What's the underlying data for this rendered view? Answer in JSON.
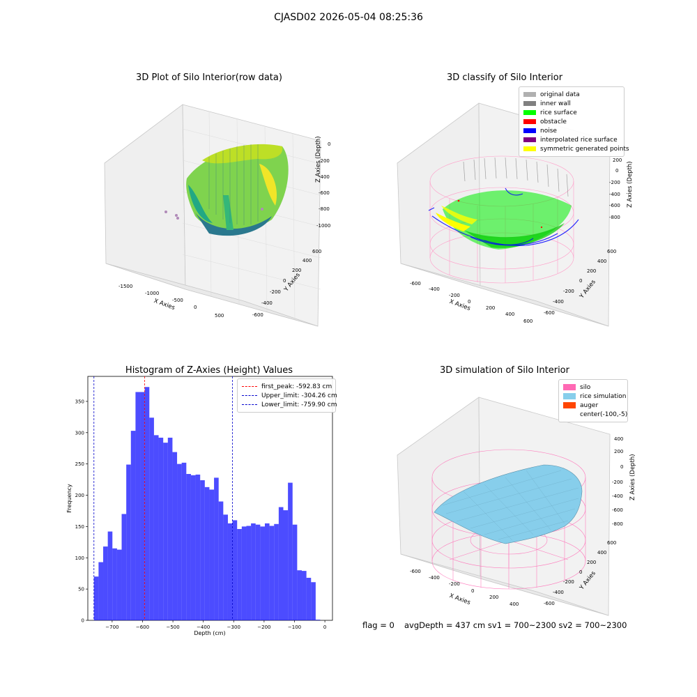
{
  "suptitle": "CJASD02 2026-05-04 08:25:36",
  "panels": {
    "raw": {
      "title": "3D Plot of Silo Interior(row data)",
      "xlabel": "X Axies",
      "ylabel": "Y Axies",
      "zlabel": "Z Axies (Depth)",
      "xticks": [
        "-1500",
        "-1000",
        "-500",
        "0",
        "500"
      ],
      "yticks": [
        "-600",
        "-400",
        "-200",
        "0",
        "200",
        "400",
        "600"
      ],
      "zticks": [
        "0",
        "-200",
        "-400",
        "-600",
        "-800",
        "-1000"
      ]
    },
    "classify": {
      "title": "3D classify of Silo Interior",
      "xlabel": "X Axies",
      "ylabel": "Y Axies",
      "zlabel": "Z Axies (Depth)",
      "xticks": [
        "-600",
        "-400",
        "-200",
        "0",
        "200",
        "400",
        "600"
      ],
      "yticks": [
        "-600",
        "-400",
        "-200",
        "0",
        "200",
        "400",
        "600"
      ],
      "zticks": [
        "200",
        "0",
        "-200",
        "-400",
        "-600",
        "-800"
      ],
      "legend": [
        {
          "label": "original data",
          "color": "#b0b0b0"
        },
        {
          "label": "inner wall",
          "color": "#808080"
        },
        {
          "label": "rice surface",
          "color": "#00ff00"
        },
        {
          "label": "obstacle",
          "color": "#ff0000"
        },
        {
          "label": "noise",
          "color": "#0000ff"
        },
        {
          "label": "interpolated rice surface",
          "color": "#800080"
        },
        {
          "label": "symmetric generated points",
          "color": "#ffff00"
        }
      ]
    },
    "simulation": {
      "title": "3D simulation of Silo Interior",
      "xlabel": "X Axies",
      "ylabel": "Y Axies",
      "zlabel": "Z Axies (Depth)",
      "xticks": [
        "-600",
        "-400",
        "-200",
        "0",
        "200",
        "400"
      ],
      "yticks": [
        "-600",
        "-400",
        "-200",
        "0",
        "200",
        "400",
        "600"
      ],
      "zticks": [
        "400",
        "200",
        "0",
        "-200",
        "-400",
        "-600",
        "-800"
      ],
      "legend": [
        {
          "label": "silo",
          "color": "#ff69b4"
        },
        {
          "label": "rice simulation",
          "color": "#87ceeb"
        },
        {
          "label": "auger",
          "color": "#ff4500"
        },
        {
          "label": "center(-100,-5)",
          "color": ""
        }
      ]
    }
  },
  "footer": {
    "flag": "flag = 0",
    "stats": "avgDepth = 437 cm  sv1 = 700~2300  sv2 = 700~2300"
  },
  "chart_data": [
    {
      "type": "bar",
      "title": "Histogram of Z-Axies (Height) Values",
      "xlabel": "Depth (cm)",
      "ylabel": "Frequency",
      "xlim": [
        -780,
        25
      ],
      "ylim": [
        0,
        390
      ],
      "xticks": [
        -700,
        -600,
        -500,
        -400,
        -300,
        -200,
        -100,
        0
      ],
      "yticks": [
        0,
        50,
        100,
        150,
        200,
        250,
        300,
        350
      ],
      "bar_color": "#0000ff",
      "bin_width": 15.2,
      "bin_start": -759.9,
      "values": [
        70,
        93,
        118,
        142,
        115,
        113,
        170,
        249,
        303,
        365,
        365,
        373,
        324,
        296,
        292,
        284,
        292,
        269,
        250,
        252,
        234,
        232,
        233,
        224,
        213,
        209,
        228,
        190,
        169,
        155,
        160,
        146,
        150,
        151,
        155,
        153,
        150,
        155,
        151,
        154,
        181,
        176,
        220,
        153,
        80,
        79,
        68,
        61,
        1
      ],
      "vlines": [
        {
          "label": "first_peak: -592.83 cm",
          "x": -592.83,
          "color": "#ff0000"
        },
        {
          "label": "Upper_limit: -304.26 cm",
          "x": -304.26,
          "color": "#0000cc"
        },
        {
          "label": "Lower_limit: -759.90 cm",
          "x": -759.9,
          "color": "#0000cc"
        }
      ],
      "legend_position": "upper right"
    }
  ]
}
